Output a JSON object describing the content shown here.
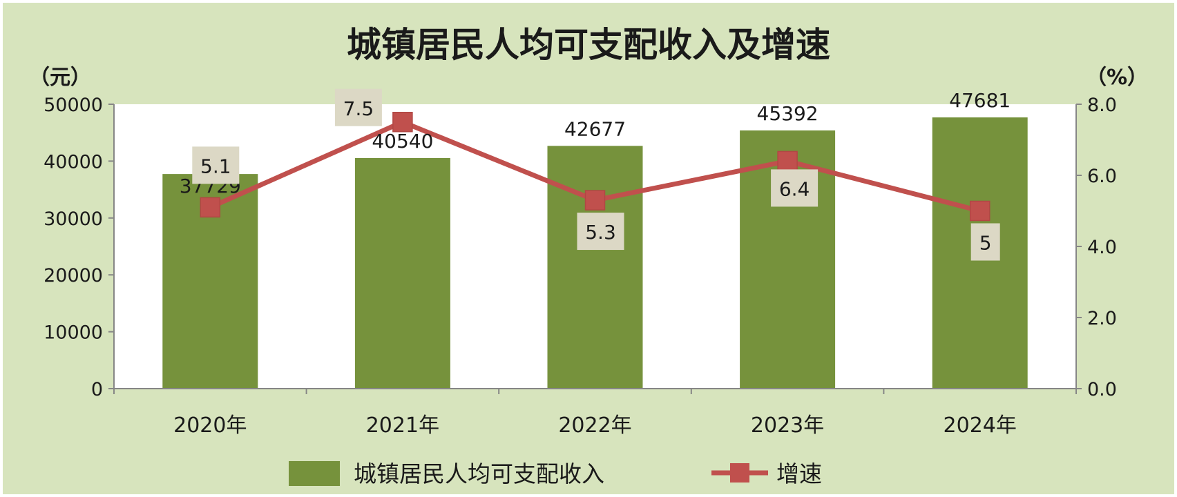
{
  "chart_data": {
    "type": "bar",
    "title": "城镇居民人均可支配收入及增速",
    "y_left_unit": "（元）",
    "y_right_unit": "（%）",
    "categories": [
      "2020年",
      "2021年",
      "2022年",
      "2023年",
      "2024年"
    ],
    "y_left_ticks": [
      "0",
      "10000",
      "20000",
      "30000",
      "40000",
      "50000"
    ],
    "y_right_ticks": [
      "0.0",
      "2.0",
      "4.0",
      "6.0",
      "8.0"
    ],
    "y_left_lim": [
      0,
      50000
    ],
    "y_right_lim": [
      0,
      8
    ],
    "series": [
      {
        "name": "城镇居民人均可支配收入",
        "type": "bar",
        "axis": "left",
        "color": "#76923c",
        "values": [
          37729,
          40540,
          42677,
          45392,
          47681
        ],
        "labels": [
          "37729",
          "40540",
          "42677",
          "45392",
          "47681"
        ]
      },
      {
        "name": "增速",
        "type": "line",
        "axis": "right",
        "color": "#c0504d",
        "values": [
          5.1,
          7.5,
          5.3,
          6.4,
          5
        ],
        "labels": [
          "5.1",
          "7.5",
          "5.3",
          "6.4",
          "5"
        ]
      }
    ],
    "grid": false,
    "legend": "bottom"
  }
}
